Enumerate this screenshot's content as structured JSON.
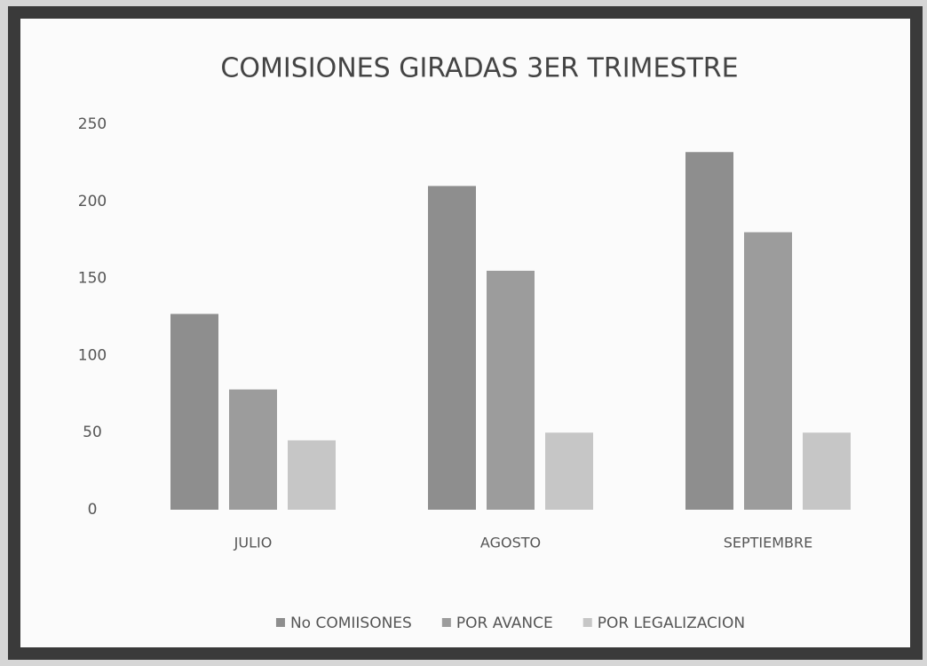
{
  "chart_data": {
    "type": "bar",
    "title": "COMISIONES GIRADAS 3ER TRIMESTRE",
    "categories": [
      "JULIO",
      "AGOSTO",
      "SEPTIEMBRE"
    ],
    "series": [
      {
        "name": "No COMIISONES",
        "color": "#8e8e8e",
        "values": [
          127,
          210,
          232
        ]
      },
      {
        "name": "POR AVANCE",
        "color": "#9c9c9c",
        "values": [
          78,
          155,
          180
        ]
      },
      {
        "name": "POR LEGALIZACION",
        "color": "#c6c6c6",
        "values": [
          45,
          50,
          50
        ]
      }
    ],
    "ylim": [
      0,
      250
    ],
    "yticks": [
      0,
      50,
      100,
      150,
      200,
      250
    ],
    "grid": false,
    "legend": "bottom"
  }
}
